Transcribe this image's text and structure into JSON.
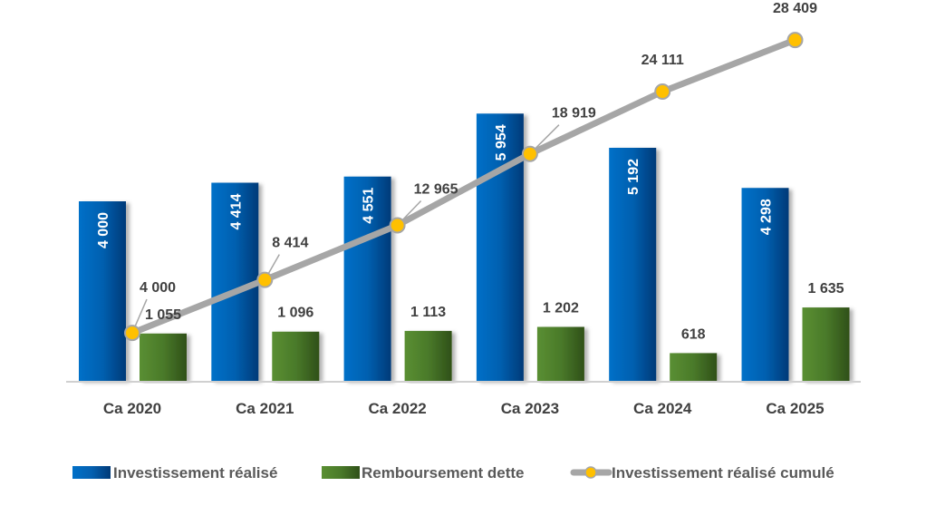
{
  "chart_data": {
    "type": "bar+line",
    "categories": [
      "Ca 2020",
      "Ca 2021",
      "Ca 2022",
      "Ca 2023",
      "Ca 2024",
      "Ca 2025"
    ],
    "series": [
      {
        "name": "Investissement réalisé",
        "type": "bar",
        "axis": "primary",
        "color": "#0563C1",
        "values": [
          4000,
          4414,
          4551,
          5954,
          5192,
          4298
        ],
        "labels": [
          "4 000",
          "4 414",
          "4 551",
          "5 954",
          "5 192",
          "4 298"
        ]
      },
      {
        "name": "Remboursement dette",
        "type": "bar",
        "axis": "primary",
        "color": "#548235",
        "values": [
          1055,
          1096,
          1113,
          1202,
          618,
          1635
        ],
        "labels": [
          "1 055",
          "1 096",
          "1 113",
          "1 202",
          "618",
          "1 635"
        ]
      },
      {
        "name": "Investissement réalisé cumulé",
        "type": "line",
        "axis": "secondary",
        "color": "#A6A6A6",
        "marker_color": "#FFC000",
        "values": [
          4000,
          8414,
          12965,
          18919,
          24111,
          28409
        ],
        "labels": [
          "4 000",
          "8 414",
          "12 965",
          "18 919",
          "24 111",
          "28 409"
        ]
      }
    ],
    "grid": false,
    "legend": "bottom",
    "title": "",
    "xlabel": "",
    "ylabel": ""
  }
}
